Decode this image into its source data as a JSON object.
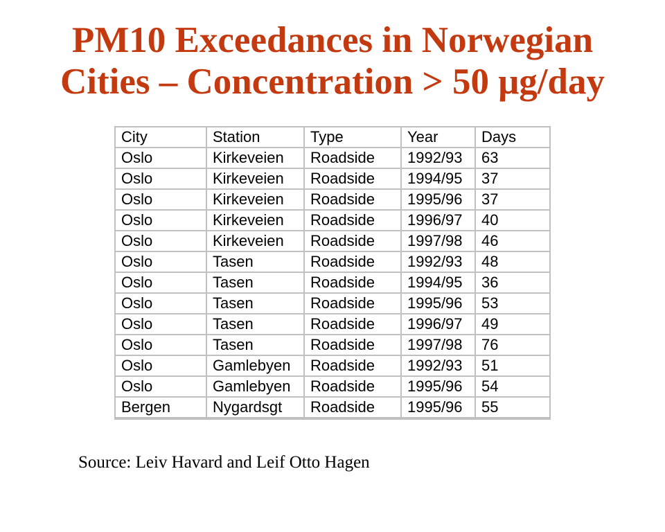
{
  "slide": {
    "title_line1": "PM10 Exceedances in Norwegian",
    "title_line2": "Cities – Concentration > 50 μg/day",
    "title_color": "#c43a10",
    "source_note": "Source: Leiv Havard and Leif Otto Hagen",
    "background_color": "#ffffff"
  },
  "table": {
    "border_color": "#c0c0c0",
    "columns": [
      "City",
      "Station",
      "Type",
      "Year",
      "Days"
    ],
    "rows": [
      [
        "Oslo",
        "Kirkeveien",
        "Roadside",
        "1992/93",
        "63"
      ],
      [
        "Oslo",
        "Kirkeveien",
        "Roadside",
        "1994/95",
        "37"
      ],
      [
        "Oslo",
        "Kirkeveien",
        "Roadside",
        "1995/96",
        "37"
      ],
      [
        "Oslo",
        "Kirkeveien",
        "Roadside",
        "1996/97",
        "40"
      ],
      [
        "Oslo",
        "Kirkeveien",
        "Roadside",
        "1997/98",
        "46"
      ],
      [
        "Oslo",
        "Tasen",
        "Roadside",
        "1992/93",
        "48"
      ],
      [
        "Oslo",
        "Tasen",
        "Roadside",
        "1994/95",
        "36"
      ],
      [
        "Oslo",
        "Tasen",
        "Roadside",
        "1995/96",
        "53"
      ],
      [
        "Oslo",
        "Tasen",
        "Roadside",
        "1996/97",
        "49"
      ],
      [
        "Oslo",
        "Tasen",
        "Roadside",
        "1997/98",
        "76"
      ],
      [
        "Oslo",
        "Gamlebyen",
        "Roadside",
        "1992/93",
        "51"
      ],
      [
        "Oslo",
        "Gamlebyen",
        "Roadside",
        "1995/96",
        "54"
      ],
      [
        "Bergen",
        "Nygardsgt",
        "Roadside",
        "1995/96",
        "55"
      ]
    ]
  },
  "chart_data": {
    "type": "table",
    "title": "PM10 Exceedances in Norwegian Cities – Concentration > 50 μg/day",
    "columns": [
      "City",
      "Station",
      "Type",
      "Year",
      "Days"
    ],
    "rows": [
      [
        "Oslo",
        "Kirkeveien",
        "Roadside",
        "1992/93",
        63
      ],
      [
        "Oslo",
        "Kirkeveien",
        "Roadside",
        "1994/95",
        37
      ],
      [
        "Oslo",
        "Kirkeveien",
        "Roadside",
        "1995/96",
        37
      ],
      [
        "Oslo",
        "Kirkeveien",
        "Roadside",
        "1996/97",
        40
      ],
      [
        "Oslo",
        "Kirkeveien",
        "Roadside",
        "1997/98",
        46
      ],
      [
        "Oslo",
        "Tasen",
        "Roadside",
        "1992/93",
        48
      ],
      [
        "Oslo",
        "Tasen",
        "Roadside",
        "1994/95",
        36
      ],
      [
        "Oslo",
        "Tasen",
        "Roadside",
        "1995/96",
        53
      ],
      [
        "Oslo",
        "Tasen",
        "Roadside",
        "1996/97",
        49
      ],
      [
        "Oslo",
        "Tasen",
        "Roadside",
        "1997/98",
        76
      ],
      [
        "Oslo",
        "Gamlebyen",
        "Roadside",
        "1992/93",
        51
      ],
      [
        "Oslo",
        "Gamlebyen",
        "Roadside",
        "1995/96",
        54
      ],
      [
        "Bergen",
        "Nygardsgt",
        "Roadside",
        "1995/96",
        55
      ]
    ]
  }
}
